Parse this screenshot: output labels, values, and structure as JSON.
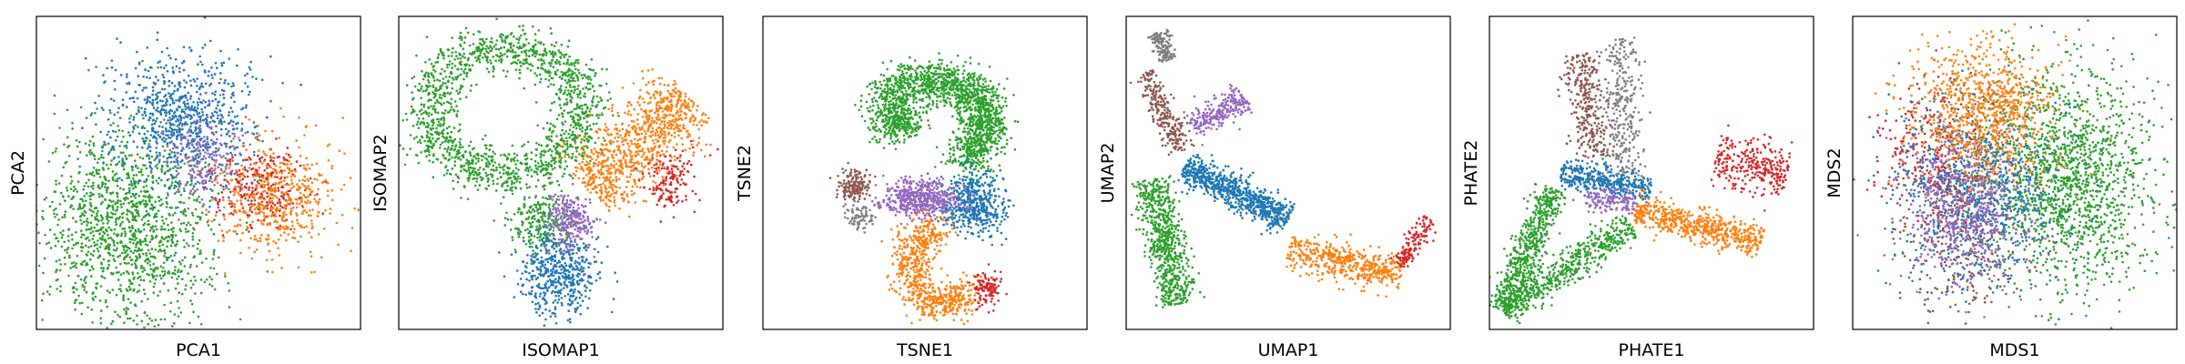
{
  "figure": {
    "background": "#ffffff"
  },
  "palette": {
    "blue": "#1f77b4",
    "orange": "#ff7f0e",
    "green": "#2ca02c",
    "red": "#d62728",
    "purple": "#9467bd",
    "brown": "#8c564b",
    "gray": "#7f7f7f"
  },
  "chart_data": [
    {
      "type": "scatter",
      "title": "",
      "xlabel": "PCA1",
      "ylabel": "PCA2",
      "xlim": [
        0,
        100
      ],
      "ylim": [
        0,
        100
      ],
      "ticks": false,
      "grid": false,
      "legend": "none",
      "clusters": [
        {
          "color": "green",
          "n": 1400,
          "cx": 28,
          "cy": 33,
          "sx": 13,
          "sy": 16
        },
        {
          "color": "blue",
          "n": 800,
          "cx": 45,
          "cy": 67,
          "sx": 11,
          "sy": 11
        },
        {
          "color": "purple",
          "n": 220,
          "cx": 52,
          "cy": 55,
          "sx": 7,
          "sy": 7
        },
        {
          "color": "red",
          "n": 260,
          "cx": 69,
          "cy": 45,
          "sx": 7,
          "sy": 6
        },
        {
          "color": "orange",
          "n": 500,
          "cx": 74,
          "cy": 42,
          "sx": 9,
          "sy": 9
        }
      ]
    },
    {
      "type": "scatter",
      "title": "",
      "xlabel": "ISOMAP1",
      "ylabel": "ISOMAP2",
      "xlim": [
        0,
        100
      ],
      "ylim": [
        0,
        100
      ],
      "ticks": false,
      "grid": false,
      "legend": "none",
      "clusters": [
        {
          "color": "green",
          "shape": "ring",
          "n": 1500,
          "cx": 33,
          "cy": 70,
          "rx": 24,
          "ry": 20,
          "w": 4.5
        },
        {
          "color": "green",
          "n": 250,
          "cx": 44,
          "cy": 35,
          "sx": 5,
          "sy": 5
        },
        {
          "color": "blue",
          "n": 500,
          "cx": 49,
          "cy": 18,
          "sx": 6,
          "sy": 7
        },
        {
          "color": "purple",
          "n": 250,
          "cx": 53,
          "cy": 35,
          "sx": 4,
          "sy": 5
        },
        {
          "color": "orange",
          "shape": "line",
          "n": 900,
          "x1": 58,
          "y1": 45,
          "x2": 90,
          "y2": 74,
          "w": 6
        },
        {
          "color": "red",
          "n": 150,
          "cx": 83,
          "cy": 47,
          "sx": 4,
          "sy": 5
        }
      ]
    },
    {
      "type": "scatter",
      "title": "",
      "xlabel": "TSNE1",
      "ylabel": "TSNE2",
      "xlim": [
        0,
        100
      ],
      "ylim": [
        0,
        100
      ],
      "ticks": false,
      "grid": false,
      "legend": "none",
      "clusters": [
        {
          "color": "green",
          "shape": "arc",
          "n": 1500,
          "cx": 52,
          "cy": 66,
          "rx": 17,
          "ry": 13,
          "a1": -60,
          "a2": 150,
          "w": 3.5
        },
        {
          "color": "green",
          "n": 300,
          "cx": 41,
          "cy": 66,
          "sx": 4,
          "sy": 3
        },
        {
          "color": "blue",
          "n": 500,
          "cx": 65,
          "cy": 40,
          "sx": 5,
          "sy": 5
        },
        {
          "color": "purple",
          "n": 500,
          "cx": 48,
          "cy": 42,
          "sx": 6,
          "sy": 3
        },
        {
          "color": "orange",
          "shape": "arc",
          "n": 700,
          "cx": 55,
          "cy": 20,
          "rx": 10,
          "ry": 12,
          "a1": 90,
          "a2": 330,
          "w": 3
        },
        {
          "color": "red",
          "n": 120,
          "cx": 69,
          "cy": 13,
          "sx": 2,
          "sy": 3
        },
        {
          "color": "brown",
          "n": 160,
          "cx": 28,
          "cy": 46,
          "sx": 2.5,
          "sy": 2.5
        },
        {
          "color": "gray",
          "n": 80,
          "cx": 30,
          "cy": 36,
          "sx": 2,
          "sy": 2
        }
      ]
    },
    {
      "type": "scatter",
      "title": "",
      "xlabel": "UMAP1",
      "ylabel": "UMAP2",
      "xlim": [
        0,
        100
      ],
      "ylim": [
        0,
        100
      ],
      "ticks": false,
      "grid": false,
      "legend": "none",
      "clusters": [
        {
          "color": "gray",
          "shape": "line",
          "n": 150,
          "x1": 10,
          "y1": 95,
          "x2": 13,
          "y2": 86,
          "w": 1.5
        },
        {
          "color": "brown",
          "shape": "line",
          "n": 250,
          "x1": 6,
          "y1": 82,
          "x2": 17,
          "y2": 57,
          "w": 2
        },
        {
          "color": "purple",
          "shape": "line",
          "n": 250,
          "x1": 20,
          "y1": 65,
          "x2": 37,
          "y2": 74,
          "w": 2.5
        },
        {
          "color": "green",
          "shape": "line",
          "n": 700,
          "x1": 8,
          "y1": 48,
          "x2": 16,
          "y2": 8,
          "w": 3
        },
        {
          "color": "blue",
          "shape": "line",
          "n": 800,
          "x1": 18,
          "y1": 52,
          "x2": 50,
          "y2": 35,
          "w": 2.5
        },
        {
          "color": "orange",
          "shape": "line",
          "n": 500,
          "x1": 50,
          "y1": 25,
          "x2": 85,
          "y2": 18,
          "w": 3
        },
        {
          "color": "red",
          "shape": "line",
          "n": 150,
          "x1": 84,
          "y1": 20,
          "x2": 94,
          "y2": 35,
          "w": 1.5
        }
      ]
    },
    {
      "type": "scatter",
      "title": "",
      "xlabel": "PHATE1",
      "ylabel": "PHATE2",
      "xlim": [
        0,
        100
      ],
      "ylim": [
        0,
        100
      ],
      "ticks": false,
      "grid": false,
      "legend": "none",
      "clusters": [
        {
          "color": "brown",
          "shape": "line",
          "n": 300,
          "x1": 28,
          "y1": 88,
          "x2": 33,
          "y2": 55,
          "w": 3
        },
        {
          "color": "gray",
          "shape": "line",
          "n": 300,
          "x1": 40,
          "y1": 93,
          "x2": 42,
          "y2": 48,
          "w": 3
        },
        {
          "color": "blue",
          "shape": "line",
          "n": 400,
          "x1": 22,
          "y1": 50,
          "x2": 50,
          "y2": 45,
          "w": 2.5
        },
        {
          "color": "purple",
          "shape": "line",
          "n": 150,
          "x1": 30,
          "y1": 42,
          "x2": 45,
          "y2": 40,
          "w": 2
        },
        {
          "color": "green",
          "shape": "line",
          "n": 600,
          "x1": 20,
          "y1": 45,
          "x2": 4,
          "y2": 6,
          "w": 2.5
        },
        {
          "color": "green",
          "shape": "line",
          "n": 600,
          "x1": 4,
          "y1": 6,
          "x2": 44,
          "y2": 33,
          "w": 2.5
        },
        {
          "color": "orange",
          "shape": "line",
          "n": 600,
          "x1": 45,
          "y1": 38,
          "x2": 84,
          "y2": 28,
          "w": 2.5
        },
        {
          "color": "red",
          "shape": "line",
          "n": 300,
          "x1": 70,
          "y1": 55,
          "x2": 92,
          "y2": 50,
          "w": 4
        }
      ]
    },
    {
      "type": "scatter",
      "title": "",
      "xlabel": "MDS1",
      "ylabel": "MDS2",
      "xlim": [
        0,
        100
      ],
      "ylim": [
        0,
        100
      ],
      "ticks": false,
      "grid": false,
      "legend": "none",
      "clusters": [
        {
          "color": "green",
          "n": 1600,
          "cx": 67,
          "cy": 48,
          "sx": 14,
          "sy": 18
        },
        {
          "color": "brown",
          "n": 300,
          "cx": 35,
          "cy": 30,
          "sx": 10,
          "sy": 12
        },
        {
          "color": "red",
          "n": 300,
          "cx": 25,
          "cy": 55,
          "sx": 8,
          "sy": 12
        },
        {
          "color": "blue",
          "n": 900,
          "cx": 38,
          "cy": 45,
          "sx": 12,
          "sy": 15
        },
        {
          "color": "purple",
          "n": 600,
          "cx": 35,
          "cy": 38,
          "sx": 10,
          "sy": 12
        },
        {
          "color": "orange",
          "n": 900,
          "cx": 40,
          "cy": 70,
          "sx": 11,
          "sy": 11
        }
      ]
    }
  ]
}
